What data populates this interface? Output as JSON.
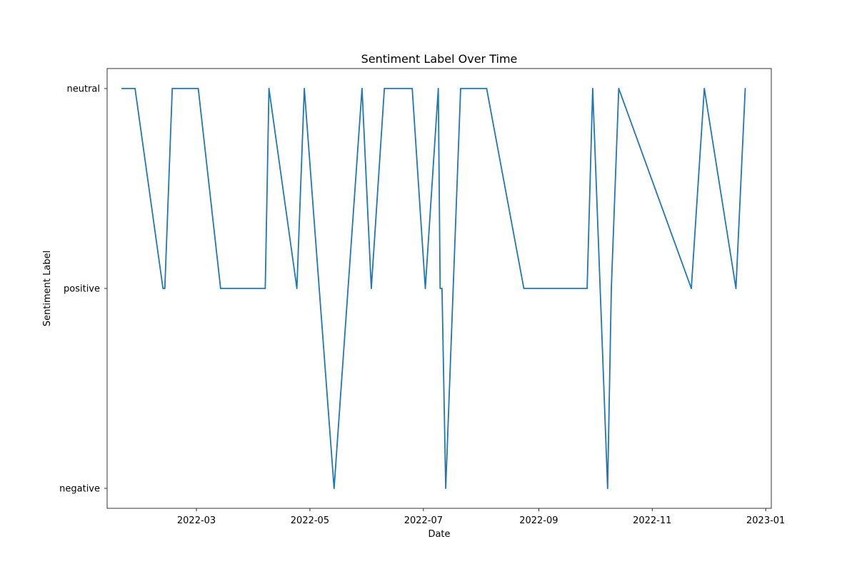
{
  "chart_data": {
    "type": "line",
    "title": "Sentiment Label Over Time",
    "xlabel": "Date",
    "ylabel": "Sentiment Label",
    "x_ticks": [
      "2022-03",
      "2022-05",
      "2022-07",
      "2022-09",
      "2022-11",
      "2023-01"
    ],
    "y_categories": [
      "negative",
      "positive",
      "neutral"
    ],
    "xlim": [
      "2022-01-12",
      "2023-01-04"
    ],
    "grid": false,
    "legend": "none",
    "series_color": "#1f77b4",
    "series": [
      {
        "points": [
          {
            "x": "2022-01-20",
            "y": "neutral"
          },
          {
            "x": "2022-01-27",
            "y": "neutral"
          },
          {
            "x": "2022-02-11",
            "y": "positive"
          },
          {
            "x": "2022-02-12",
            "y": "positive"
          },
          {
            "x": "2022-02-16",
            "y": "neutral"
          },
          {
            "x": "2022-03-02",
            "y": "neutral"
          },
          {
            "x": "2022-03-14",
            "y": "positive"
          },
          {
            "x": "2022-04-07",
            "y": "positive"
          },
          {
            "x": "2022-04-09",
            "y": "neutral"
          },
          {
            "x": "2022-04-24",
            "y": "positive"
          },
          {
            "x": "2022-04-28",
            "y": "neutral"
          },
          {
            "x": "2022-05-14",
            "y": "negative"
          },
          {
            "x": "2022-05-29",
            "y": "neutral"
          },
          {
            "x": "2022-06-03",
            "y": "positive"
          },
          {
            "x": "2022-06-10",
            "y": "neutral"
          },
          {
            "x": "2022-06-25",
            "y": "neutral"
          },
          {
            "x": "2022-07-02",
            "y": "positive"
          },
          {
            "x": "2022-07-09",
            "y": "neutral"
          },
          {
            "x": "2022-07-10",
            "y": "positive"
          },
          {
            "x": "2022-07-11",
            "y": "positive"
          },
          {
            "x": "2022-07-13",
            "y": "negative"
          },
          {
            "x": "2022-07-21",
            "y": "neutral"
          },
          {
            "x": "2022-08-04",
            "y": "neutral"
          },
          {
            "x": "2022-08-24",
            "y": "positive"
          },
          {
            "x": "2022-09-27",
            "y": "positive"
          },
          {
            "x": "2022-09-30",
            "y": "neutral"
          },
          {
            "x": "2022-10-08",
            "y": "negative"
          },
          {
            "x": "2022-10-10",
            "y": "positive"
          },
          {
            "x": "2022-10-14",
            "y": "neutral"
          },
          {
            "x": "2022-11-22",
            "y": "positive"
          },
          {
            "x": "2022-11-29",
            "y": "neutral"
          },
          {
            "x": "2022-12-16",
            "y": "positive"
          },
          {
            "x": "2022-12-21",
            "y": "neutral"
          }
        ]
      }
    ]
  }
}
